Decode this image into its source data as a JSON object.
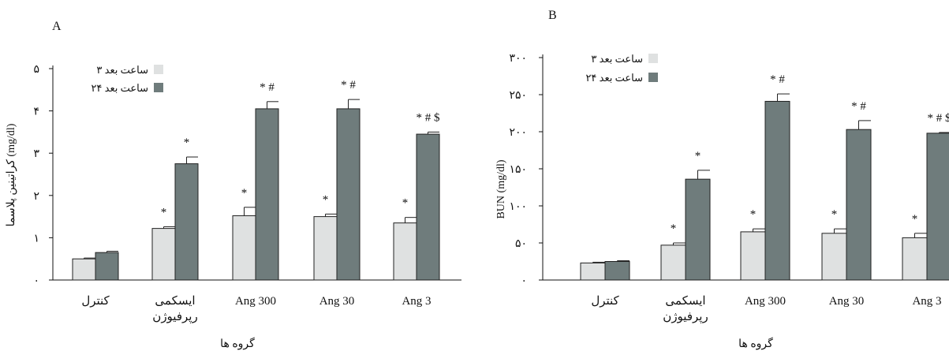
{
  "chart_data": [
    {
      "type": "bar",
      "panel_label": "A",
      "ylabel": "کراتینین پلاسما (mg/dl)",
      "xlabel": "گروه ها",
      "yticks": [
        "۰",
        "۱",
        "۲",
        "۳",
        "۴",
        "۵"
      ],
      "ylim": [
        0,
        5
      ],
      "grid": false,
      "legend_position": "top-left",
      "categories": [
        "کنترل",
        "ایسکمی\nرپرفیوژن",
        "Ang 300",
        "Ang 30",
        "Ang 3"
      ],
      "series": [
        {
          "name": "۳ ساعت بعد",
          "color": "#dfe1e1",
          "values": [
            0.5,
            1.22,
            1.52,
            1.5,
            1.35
          ],
          "errors": [
            0.02,
            0.04,
            0.2,
            0.06,
            0.13
          ]
        },
        {
          "name": "۲۴ ساعت بعد",
          "color": "#6f7c7c",
          "values": [
            0.65,
            2.75,
            4.05,
            4.05,
            3.45
          ],
          "errors": [
            0.03,
            0.16,
            0.17,
            0.22,
            0.05
          ]
        }
      ],
      "annotations": [
        {
          "series": 0,
          "category": 1,
          "text": "*"
        },
        {
          "series": 0,
          "category": 2,
          "text": "*"
        },
        {
          "series": 0,
          "category": 3,
          "text": "*"
        },
        {
          "series": 0,
          "category": 4,
          "text": "*"
        },
        {
          "series": 1,
          "category": 1,
          "text": "*"
        },
        {
          "series": 1,
          "category": 2,
          "text": "* #"
        },
        {
          "series": 1,
          "category": 3,
          "text": "* #"
        },
        {
          "series": 1,
          "category": 4,
          "text": "* # $"
        }
      ]
    },
    {
      "type": "bar",
      "panel_label": "B",
      "ylabel": "BUN (mg/dl)",
      "xlabel": "گروه ها",
      "yticks": [
        "۰",
        "۵۰",
        "۱۰۰",
        "۱۵۰",
        "۲۰۰",
        "۲۵۰",
        "۳۰۰"
      ],
      "ylim": [
        0,
        300
      ],
      "grid": false,
      "legend_position": "top-left",
      "categories": [
        "کنترل",
        "ایسکمی\nرپرفیوژن",
        "Ang 300",
        "Ang 30",
        "Ang 3"
      ],
      "series": [
        {
          "name": "۳ ساعت بعد",
          "color": "#dfe1e1",
          "values": [
            23,
            47,
            65,
            63,
            57
          ],
          "errors": [
            1,
            3,
            4,
            6,
            6
          ]
        },
        {
          "name": "۲۴ ساعت بعد",
          "color": "#6f7c7c",
          "values": [
            25,
            136,
            241,
            203,
            198
          ],
          "errors": [
            1,
            12,
            10,
            12,
            1
          ]
        }
      ],
      "annotations": [
        {
          "series": 0,
          "category": 1,
          "text": "*"
        },
        {
          "series": 0,
          "category": 2,
          "text": "*"
        },
        {
          "series": 0,
          "category": 3,
          "text": "*"
        },
        {
          "series": 0,
          "category": 4,
          "text": "*"
        },
        {
          "series": 1,
          "category": 1,
          "text": "*"
        },
        {
          "series": 1,
          "category": 2,
          "text": "* #"
        },
        {
          "series": 1,
          "category": 3,
          "text": "* #"
        },
        {
          "series": 1,
          "category": 4,
          "text": "* # $"
        }
      ]
    }
  ]
}
